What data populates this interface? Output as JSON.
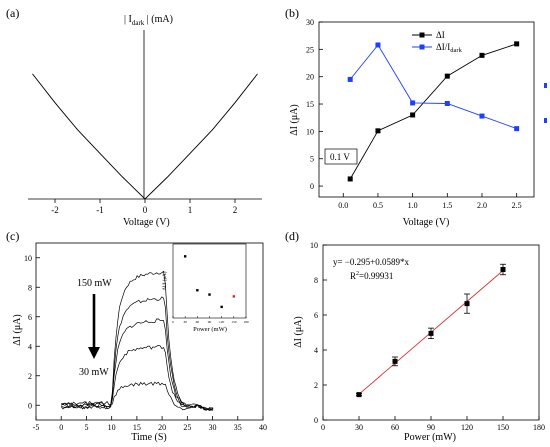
{
  "chart_data": [
    {
      "panel": "(a)",
      "type": "line",
      "ylabel_main": "| I",
      "ylabel_sub": "dark",
      "ylabel_tail": "| (mA)",
      "xlabel": "Voltage (V)",
      "xlim": [
        -2.6,
        2.6
      ],
      "ylim": [
        0,
        1.0
      ],
      "xticks": [
        -2,
        -1,
        0,
        1,
        2
      ],
      "x": [
        -2.5,
        -2.0,
        -1.5,
        -1.0,
        -0.5,
        0.0,
        0.5,
        1.0,
        1.5,
        2.0,
        2.5
      ],
      "y": [
        0.74,
        0.57,
        0.41,
        0.27,
        0.13,
        0.0,
        0.13,
        0.27,
        0.41,
        0.57,
        0.74
      ]
    },
    {
      "panel": "(b)",
      "type": "line",
      "xlabel": "Voltage (V)",
      "ylabel": "ΔI (μA)",
      "xlim": [
        -0.35,
        2.75
      ],
      "ylim": [
        -2,
        30
      ],
      "xticks": [
        0.0,
        0.5,
        1.0,
        1.5,
        2.0,
        2.5
      ],
      "xtick_labels": [
        "0.0",
        "0.5",
        "1.0",
        "1.5",
        "2.0",
        "2.5"
      ],
      "yticks": [
        0,
        5,
        10,
        15,
        20,
        25,
        30
      ],
      "x": [
        0.1,
        0.5,
        1.0,
        1.5,
        2.0,
        2.5
      ],
      "series": [
        {
          "name": "ΔI",
          "values": [
            1.3,
            10.1,
            13.0,
            20.1,
            23.9,
            26.0
          ],
          "color": "#000000",
          "marker": "square"
        },
        {
          "name_main": "ΔI/I",
          "name_sub": "dark",
          "values": [
            19.5,
            25.8,
            15.2,
            15.1,
            12.8,
            10.5
          ],
          "color": "#1f3fff",
          "marker": "square"
        }
      ],
      "annotation": "0.1 V"
    },
    {
      "panel": "(c)",
      "type": "line",
      "xlabel": "Time (S)",
      "ylabel": "ΔI (μA)",
      "xlim": [
        -5,
        40
      ],
      "ylim": [
        -1,
        11
      ],
      "xticks": [
        -5,
        0,
        5,
        10,
        15,
        20,
        25,
        30,
        35,
        40
      ],
      "yticks": [
        0,
        2,
        4,
        6,
        8,
        10
      ],
      "annotations": [
        "150 mW",
        "30 mW"
      ],
      "series": [
        {
          "power": 150,
          "on_level": 9.1
        },
        {
          "power": 120,
          "on_level": 7.3
        },
        {
          "power": 90,
          "on_level": 5.8
        },
        {
          "power": 60,
          "on_level": 4.0
        },
        {
          "power": 30,
          "on_level": 1.5
        }
      ],
      "light_on": [
        9.8,
        20.5
      ],
      "inset": {
        "xlabel": "Power (mW)",
        "ylabel": "ΔI/I (μA)",
        "xticks": [
          0,
          30,
          60,
          90,
          120,
          150,
          180
        ],
        "x": [
          30,
          60,
          90,
          120,
          150
        ],
        "y": [
          1.0,
          0.45,
          0.38,
          0.18,
          0.35
        ],
        "highlight_index": 4,
        "highlight_color": "#e02020"
      }
    },
    {
      "panel": "(d)",
      "type": "scatter",
      "xlabel": "Power (mW)",
      "ylabel": "ΔI (μA)",
      "xlim": [
        0,
        180
      ],
      "ylim": [
        0,
        10
      ],
      "xticks": [
        0,
        30,
        60,
        90,
        120,
        150,
        180
      ],
      "yticks": [
        0,
        2,
        4,
        6,
        8,
        10
      ],
      "x": [
        30,
        60,
        90,
        120,
        150
      ],
      "y": [
        1.45,
        3.35,
        4.95,
        6.65,
        8.6
      ],
      "yerr": [
        0.06,
        0.25,
        0.3,
        0.55,
        0.3
      ],
      "fit": {
        "intercept": -0.295,
        "slope": 0.0589,
        "color": "#e03030",
        "x_range": [
          28,
          152
        ]
      },
      "equation": "y= −0.295+0.0589*x",
      "r2_main": "R",
      "r2_sup": "2",
      "r2_tail": "=0.99931"
    }
  ]
}
